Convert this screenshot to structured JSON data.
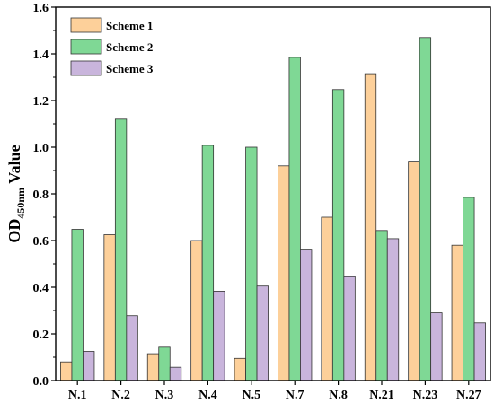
{
  "chart_data": {
    "type": "bar",
    "title": "",
    "xlabel": "",
    "ylabel": {
      "main": "OD",
      "subscript": "450nm",
      "suffix": " Value"
    },
    "ylim": [
      0,
      1.6
    ],
    "yticks": [
      "0.0",
      "0.2",
      "0.4",
      "0.6",
      "0.8",
      "1.0",
      "1.2",
      "1.4",
      "1.6"
    ],
    "categories": [
      "N.1",
      "N.2",
      "N.3",
      "N.4",
      "N.5",
      "N.7",
      "N.8",
      "N.21",
      "N.23",
      "N.27"
    ],
    "series": [
      {
        "name": "Scheme 1",
        "color": "#fdd09a",
        "values": [
          0.08,
          0.625,
          0.115,
          0.6,
          0.095,
          0.92,
          0.7,
          1.315,
          0.94,
          0.58
        ]
      },
      {
        "name": "Scheme 2",
        "color": "#7fd895",
        "values": [
          0.648,
          1.12,
          0.143,
          1.008,
          1.0,
          1.385,
          1.247,
          0.643,
          1.47,
          0.785
        ]
      },
      {
        "name": "Scheme 3",
        "color": "#c9b5dc",
        "values": [
          0.125,
          0.278,
          0.057,
          0.383,
          0.405,
          0.563,
          0.445,
          0.608,
          0.29,
          0.247
        ]
      }
    ],
    "legend_position": "top-left",
    "grid": false
  }
}
